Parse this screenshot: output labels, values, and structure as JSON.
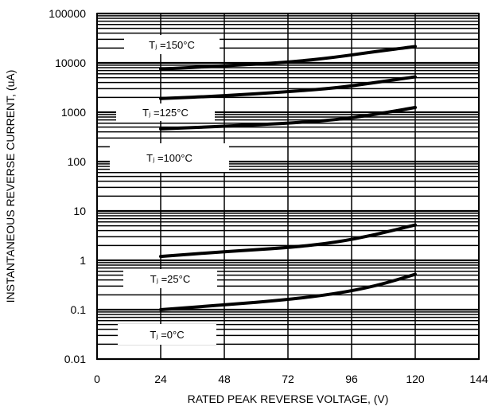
{
  "chart_data": {
    "type": "line",
    "xlabel": "RATED PEAK REVERSE VOLTAGE, (V)",
    "ylabel": "INSTANTANEOUS REVERSE CURRENT, (uA)",
    "x_scale": "linear",
    "y_scale": "log",
    "xlim": [
      0,
      144
    ],
    "ylim": [
      0.01,
      100000
    ],
    "x_ticks": [
      "0",
      "24",
      "48",
      "72",
      "96",
      "120",
      "144"
    ],
    "y_ticks": [
      "100000",
      "10000",
      "1000",
      "100",
      "10",
      "1",
      "0.1",
      "0.01"
    ],
    "grid": true,
    "series": [
      {
        "name": "Tⱼ =150°C",
        "x": [
          24,
          48,
          72,
          90,
          105,
          120
        ],
        "y": [
          7500,
          8700,
          10300,
          13000,
          17000,
          21500
        ]
      },
      {
        "name": "Tⱼ =125°C",
        "x": [
          24,
          48,
          72,
          90,
          105,
          120
        ],
        "y": [
          1900,
          2150,
          2600,
          3100,
          4000,
          5200
        ]
      },
      {
        "name": "Tⱼ =100°C",
        "x": [
          24,
          48,
          72,
          90,
          105,
          120
        ],
        "y": [
          460,
          520,
          600,
          700,
          900,
          1250
        ]
      },
      {
        "name": "Tⱼ =25°C",
        "x": [
          24,
          48,
          72,
          90,
          105,
          120
        ],
        "y": [
          1.2,
          1.5,
          1.8,
          2.3,
          3.3,
          5.2
        ]
      },
      {
        "name": "Tⱼ =0°C",
        "x": [
          24,
          48,
          72,
          90,
          105,
          120
        ],
        "y": [
          0.1,
          0.125,
          0.16,
          0.21,
          0.3,
          0.52
        ]
      }
    ]
  }
}
